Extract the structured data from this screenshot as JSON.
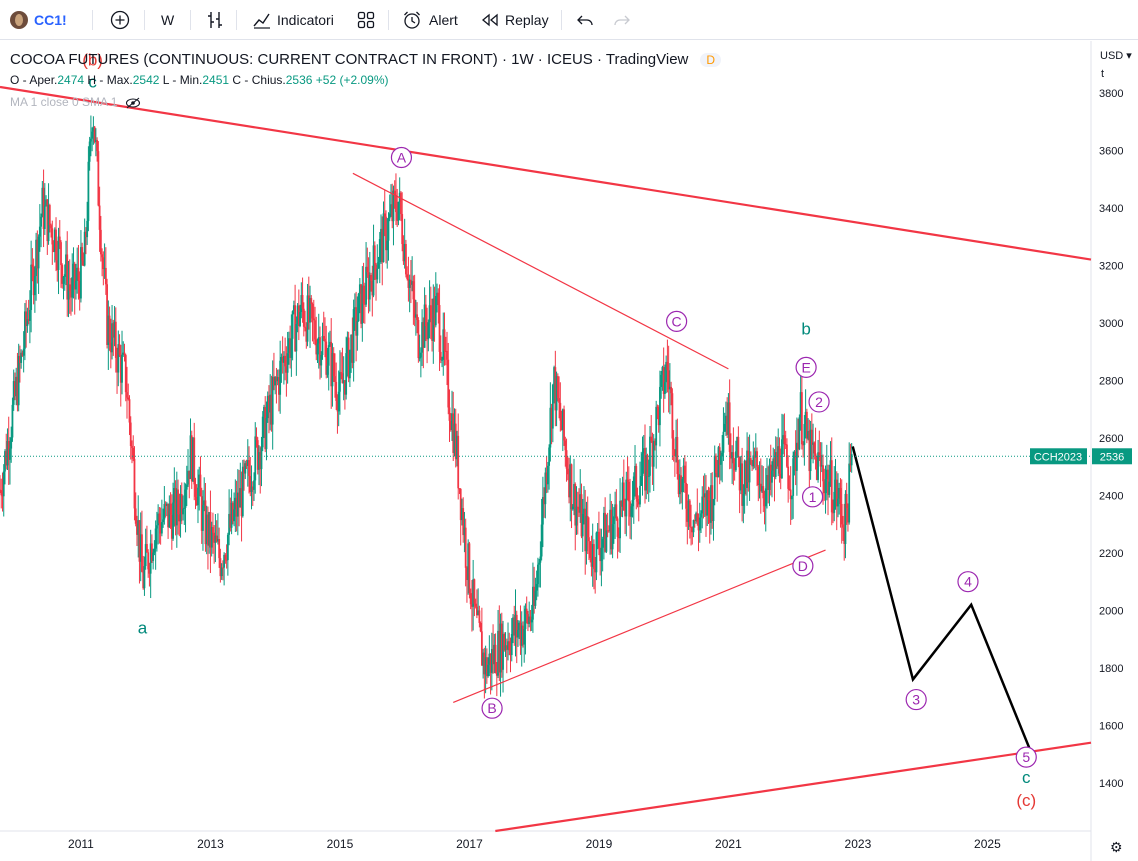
{
  "toolbar": {
    "symbol": "CC1!",
    "interval": "W",
    "indicators_label": "Indicatori",
    "alert_label": "Alert",
    "replay_label": "Replay",
    "icons": [
      "plus-circle-icon",
      "bar-style-icon",
      "indicators-icon",
      "templates-icon",
      "alarm-clock-icon",
      "replay-icon",
      "undo-icon",
      "redo-icon"
    ]
  },
  "legend": {
    "title": "COCOA FUTURES (CONTINUOUS: CURRENT CONTRACT IN FRONT) · 1W · ICEUS · TradingView",
    "badge": "D",
    "o_label": "O - Aper.",
    "o_value": "2474",
    "h_label": "H - Max.",
    "h_value": "2542",
    "l_label": "L - Min.",
    "l_value": "2451",
    "c_label": "C - Chius.",
    "c_value": "2536",
    "change": "+52 (+2.09%)",
    "ma": "MA 1 close 0 SMA 1"
  },
  "price_scale": {
    "currency": "USD",
    "t_label": "t"
  },
  "chart_data": {
    "type": "candlestick",
    "title": "COCOA FUTURES (CONTINUOUS: CURRENT CONTRACT IN FRONT) · 1W · ICEUS · TradingView",
    "xlim": [
      2009.75,
      2026.6
    ],
    "ylim": [
      1233,
      3980
    ],
    "x_ticks": [
      2011,
      2013,
      2015,
      2017,
      2019,
      2021,
      2023,
      2025
    ],
    "y_ticks": [
      1400,
      1600,
      1800,
      2000,
      2200,
      2400,
      2600,
      2800,
      3000,
      3200,
      3400,
      3600,
      3800
    ],
    "grid": false,
    "current_price": {
      "contract": "CCH2023",
      "value": 2536,
      "color": "#089981"
    },
    "colors": {
      "up": "#089981",
      "down": "#f23645",
      "trendline": "#f23645",
      "forecast": "#000000",
      "wave_circle": "#9c27b0",
      "wave_teal": "#00897b",
      "wave_red": "#e53935"
    },
    "price_path": [
      [
        2009.75,
        2420
      ],
      [
        2010.1,
        2900
      ],
      [
        2010.4,
        3400
      ],
      [
        2010.6,
        3300
      ],
      [
        2010.85,
        3100
      ],
      [
        2011.05,
        3200
      ],
      [
        2011.18,
        3770
      ],
      [
        2011.4,
        3000
      ],
      [
        2011.7,
        2800
      ],
      [
        2011.95,
        2100
      ],
      [
        2012.15,
        2300
      ],
      [
        2012.5,
        2350
      ],
      [
        2012.7,
        2550
      ],
      [
        2012.9,
        2300
      ],
      [
        2013.15,
        2180
      ],
      [
        2013.4,
        2350
      ],
      [
        2013.8,
        2600
      ],
      [
        2014.1,
        2850
      ],
      [
        2014.4,
        3050
      ],
      [
        2014.8,
        2900
      ],
      [
        2015.0,
        2750
      ],
      [
        2015.3,
        3050
      ],
      [
        2015.6,
        3250
      ],
      [
        2015.9,
        3430
      ],
      [
        2016.2,
        2950
      ],
      [
        2016.5,
        3050
      ],
      [
        2016.8,
        2550
      ],
      [
        2016.95,
        2200
      ],
      [
        2017.1,
        1950
      ],
      [
        2017.25,
        1800
      ],
      [
        2017.55,
        1900
      ],
      [
        2017.85,
        1950
      ],
      [
        2018.0,
        2000
      ],
      [
        2018.3,
        2800
      ],
      [
        2018.6,
        2400
      ],
      [
        2018.9,
        2200
      ],
      [
        2019.2,
        2300
      ],
      [
        2019.5,
        2400
      ],
      [
        2019.75,
        2500
      ],
      [
        2020.05,
        2850
      ],
      [
        2020.25,
        2450
      ],
      [
        2020.5,
        2300
      ],
      [
        2020.75,
        2400
      ],
      [
        2020.95,
        2700
      ],
      [
        2021.2,
        2450
      ],
      [
        2021.45,
        2500
      ],
      [
        2021.6,
        2400
      ],
      [
        2021.8,
        2550
      ],
      [
        2022.0,
        2450
      ],
      [
        2022.1,
        2700
      ],
      [
        2022.25,
        2550
      ],
      [
        2022.55,
        2450
      ],
      [
        2022.7,
        2380
      ],
      [
        2022.8,
        2300
      ],
      [
        2022.92,
        2536
      ]
    ],
    "wave_labels": [
      {
        "text": "(b)",
        "x": 2011.18,
        "y": 3915,
        "color": "red"
      },
      {
        "text": "c",
        "x": 2011.18,
        "y": 3840,
        "color": "teal"
      },
      {
        "text": "a",
        "x": 2011.95,
        "y": 1940,
        "color": "teal"
      },
      {
        "text": "A",
        "x": 2015.95,
        "y": 3575,
        "circle": true
      },
      {
        "text": "B",
        "x": 2017.35,
        "y": 1660,
        "circle": true
      },
      {
        "text": "C",
        "x": 2020.2,
        "y": 3005,
        "circle": true
      },
      {
        "text": "D",
        "x": 2022.15,
        "y": 2155,
        "circle": true
      },
      {
        "text": "b",
        "x": 2022.2,
        "y": 2980,
        "color": "teal"
      },
      {
        "text": "E",
        "x": 2022.2,
        "y": 2845,
        "circle": true
      },
      {
        "text": "2",
        "x": 2022.4,
        "y": 2725,
        "circle": true
      },
      {
        "text": "1",
        "x": 2022.3,
        "y": 2395,
        "circle": true
      },
      {
        "text": "3",
        "x": 2023.9,
        "y": 1690,
        "circle": true
      },
      {
        "text": "4",
        "x": 2024.7,
        "y": 2100,
        "circle": true
      },
      {
        "text": "5",
        "x": 2025.6,
        "y": 1490,
        "circle": true
      },
      {
        "text": "c",
        "x": 2025.6,
        "y": 1420,
        "color": "teal"
      },
      {
        "text": "(c)",
        "x": 2025.6,
        "y": 1340,
        "color": "red"
      }
    ],
    "trend_lines": [
      {
        "name": "upper-channel",
        "from": [
          2009.75,
          3820
        ],
        "to": [
          2026.6,
          3220
        ],
        "width": 2.2
      },
      {
        "name": "lower-channel",
        "from": [
          2017.4,
          1233
        ],
        "to": [
          2026.6,
          1540
        ],
        "width": 2.2
      },
      {
        "name": "triangle-top",
        "from": [
          2015.2,
          3520
        ],
        "to": [
          2021.0,
          2840
        ],
        "width": 1.2
      },
      {
        "name": "triangle-bottom",
        "from": [
          2016.75,
          1680
        ],
        "to": [
          2022.5,
          2210
        ],
        "width": 1.2
      }
    ],
    "forecast_path": [
      [
        2022.92,
        2570
      ],
      [
        2023.85,
        1760
      ],
      [
        2024.75,
        2020
      ],
      [
        2025.65,
        1520
      ]
    ]
  }
}
